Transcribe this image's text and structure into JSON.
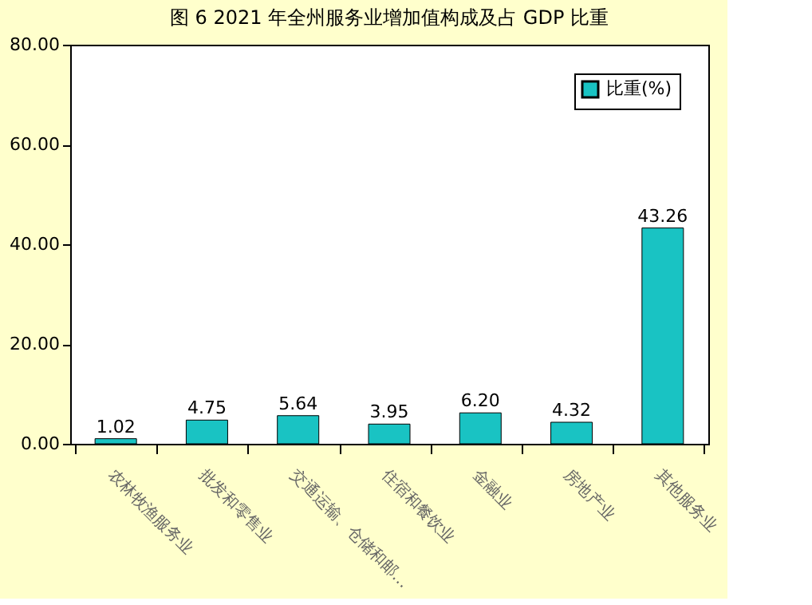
{
  "chart_data": {
    "type": "bar",
    "title": "图 6   2021 年全州服务业增加值构成及占 GDP 比重",
    "categories": [
      "农林牧渔服务业",
      "批发和零售业",
      "交通运输、仓储和邮…",
      "住宿和餐饮业",
      "金融业",
      "房地产业",
      "其他服务业"
    ],
    "series": [
      {
        "name": "比重(%)",
        "color": "#19c3c3",
        "values": [
          1.02,
          4.75,
          5.64,
          3.95,
          6.2,
          4.32,
          43.26
        ]
      }
    ],
    "value_labels": [
      "1.02",
      "4.75",
      "5.64",
      "3.95",
      "6.20",
      "4.32",
      "43.26"
    ],
    "ylim": [
      0,
      80
    ],
    "yticks": [
      {
        "value": 0,
        "label": "0.00"
      },
      {
        "value": 20,
        "label": "20.00"
      },
      {
        "value": 40,
        "label": "40.00"
      },
      {
        "value": 60,
        "label": "60.00"
      },
      {
        "value": 80,
        "label": "80.00"
      }
    ],
    "grid": false,
    "legend": "top right"
  }
}
